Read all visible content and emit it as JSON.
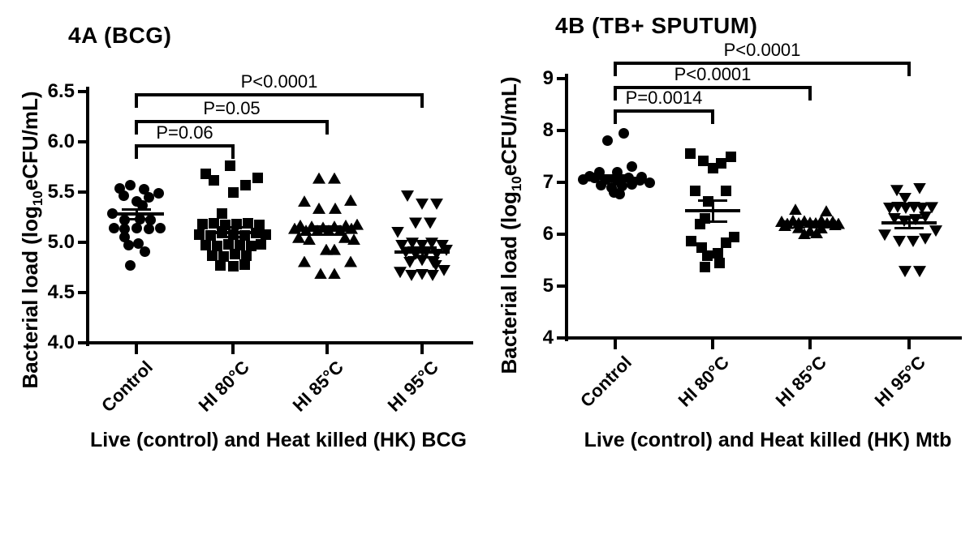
{
  "figure": {
    "background": "#ffffff",
    "ink": "#000000"
  },
  "chart_data": [
    {
      "id": "4A",
      "type": "scatter",
      "title": "4A (BCG)",
      "xlabel": "Live (control) and Heat killed (HK) BCG",
      "ylabel": {
        "prefix": "Bacterial load (log",
        "sub": "10",
        "suffix": "eCFU/mL)"
      },
      "ylim": [
        4.0,
        6.5
      ],
      "ytick_step": 0.5,
      "yticks": [
        "6.5",
        "6.0",
        "5.5",
        "5.0",
        "4.5",
        "4.0"
      ],
      "grid": false,
      "categories": [
        "Control",
        "HI 80°C",
        "HI 85°C",
        "HI 95°C"
      ],
      "groups": [
        {
          "category": "Control",
          "marker": "circle",
          "mean": 5.28,
          "sem": 0.05,
          "points": [
            [
              -21,
              5.54
            ],
            [
              -8,
              5.57
            ],
            [
              -16,
              5.46
            ],
            [
              9,
              5.53
            ],
            [
              15,
              5.45
            ],
            [
              27,
              5.49
            ],
            [
              0,
              5.41
            ],
            [
              7,
              5.37
            ],
            [
              -30,
              5.29
            ],
            [
              -15,
              5.22
            ],
            [
              4,
              5.23
            ],
            [
              17,
              5.22
            ],
            [
              -28,
              5.14
            ],
            [
              -15,
              5.13
            ],
            [
              0,
              5.14
            ],
            [
              15,
              5.13
            ],
            [
              29,
              5.14
            ],
            [
              -15,
              5.05
            ],
            [
              -10,
              4.97
            ],
            [
              2,
              4.99
            ],
            [
              10,
              4.91
            ],
            [
              -8,
              4.77
            ]
          ]
        },
        {
          "category": "HI 80°C",
          "marker": "square",
          "mean": 5.1,
          "sem": 0.05,
          "points": [
            [
              -34,
              5.68
            ],
            [
              -4,
              5.76
            ],
            [
              -24,
              5.62
            ],
            [
              15,
              5.57
            ],
            [
              30,
              5.64
            ],
            [
              0,
              5.5
            ],
            [
              -14,
              5.29
            ],
            [
              -38,
              5.18
            ],
            [
              -24,
              5.19
            ],
            [
              -10,
              5.17
            ],
            [
              4,
              5.18
            ],
            [
              18,
              5.19
            ],
            [
              32,
              5.17
            ],
            [
              -42,
              5.08
            ],
            [
              -28,
              5.07
            ],
            [
              -14,
              5.09
            ],
            [
              0,
              5.08
            ],
            [
              14,
              5.07
            ],
            [
              28,
              5.09
            ],
            [
              40,
              5.08
            ],
            [
              -34,
              4.97
            ],
            [
              -20,
              4.96
            ],
            [
              -6,
              4.98
            ],
            [
              8,
              4.97
            ],
            [
              22,
              4.96
            ],
            [
              34,
              4.98
            ],
            [
              -26,
              4.87
            ],
            [
              -12,
              4.86
            ],
            [
              2,
              4.88
            ],
            [
              16,
              4.87
            ],
            [
              -16,
              4.77
            ],
            [
              0,
              4.76
            ],
            [
              14,
              4.78
            ]
          ]
        },
        {
          "category": "HI 85°C",
          "marker": "triangle-up",
          "mean": 5.12,
          "sem": 0.04,
          "points": [
            [
              -10,
              5.64
            ],
            [
              9,
              5.64
            ],
            [
              -28,
              5.41
            ],
            [
              -10,
              5.34
            ],
            [
              10,
              5.34
            ],
            [
              29,
              5.42
            ],
            [
              -40,
              5.14
            ],
            [
              -33,
              5.17
            ],
            [
              -26,
              5.12
            ],
            [
              -19,
              5.16
            ],
            [
              -12,
              5.12
            ],
            [
              -5,
              5.15
            ],
            [
              2,
              5.12
            ],
            [
              9,
              5.16
            ],
            [
              16,
              5.12
            ],
            [
              23,
              5.17
            ],
            [
              30,
              5.14
            ],
            [
              37,
              5.18
            ],
            [
              -35,
              5.05
            ],
            [
              -22,
              5.03
            ],
            [
              22,
              5.05
            ],
            [
              33,
              5.03
            ],
            [
              -1,
              4.93
            ],
            [
              9,
              4.93
            ],
            [
              -28,
              4.81
            ],
            [
              29,
              4.81
            ],
            [
              -8,
              4.69
            ],
            [
              9,
              4.69
            ]
          ]
        },
        {
          "category": "HI 95°C",
          "marker": "triangle-down",
          "mean": 4.9,
          "sem": 0.05,
          "points": [
            [
              -18,
              5.46
            ],
            [
              0,
              5.38
            ],
            [
              18,
              5.38
            ],
            [
              -8,
              5.19
            ],
            [
              10,
              5.19
            ],
            [
              -30,
              5.1
            ],
            [
              -25,
              4.97
            ],
            [
              -12,
              4.99
            ],
            [
              0,
              4.97
            ],
            [
              12,
              4.99
            ],
            [
              25,
              4.97
            ],
            [
              -20,
              4.9
            ],
            [
              -8,
              4.88
            ],
            [
              5,
              4.9
            ],
            [
              18,
              4.88
            ],
            [
              30,
              4.92
            ],
            [
              -15,
              4.8
            ],
            [
              0,
              4.82
            ],
            [
              14,
              4.8
            ],
            [
              17,
              4.77
            ],
            [
              -27,
              4.7
            ],
            [
              -13,
              4.67
            ],
            [
              0,
              4.68
            ],
            [
              13,
              4.67
            ],
            [
              27,
              4.72
            ]
          ]
        }
      ],
      "comparisons": [
        {
          "label": "P=0.06",
          "from": 0,
          "to": 1,
          "v": 5.96
        },
        {
          "label": "P=0.05",
          "from": 0,
          "to": 2,
          "v": 6.2
        },
        {
          "label": "P<0.0001",
          "from": 0,
          "to": 3,
          "v": 6.47
        }
      ]
    },
    {
      "id": "4B",
      "type": "scatter",
      "title": "4B (TB+ SPUTUM)",
      "xlabel": "Live (control) and Heat killed (HK) Mtb",
      "ylabel": {
        "prefix": "Bacterial load (log",
        "sub": "10",
        "suffix": "eCFU/mL)"
      },
      "ylim": [
        4,
        9
      ],
      "ytick_step": 1,
      "yticks": [
        "9",
        "8",
        "7",
        "6",
        "5",
        "4"
      ],
      "grid": false,
      "categories": [
        "Control",
        "HI 80°C",
        "HI 85°C",
        "HI 95°C"
      ],
      "groups": [
        {
          "category": "Control",
          "marker": "circle",
          "mean": 7.08,
          "sem": 0.05,
          "points": [
            [
              -10,
              7.81
            ],
            [
              10,
              7.94
            ],
            [
              -20,
              7.2
            ],
            [
              2,
              7.2
            ],
            [
              20,
              7.31
            ],
            [
              -32,
              7.12
            ],
            [
              32,
              7.1
            ],
            [
              -40,
              7.05
            ],
            [
              -26,
              7.08
            ],
            [
              -12,
              7.06
            ],
            [
              2,
              7.04
            ],
            [
              16,
              7.08
            ],
            [
              30,
              7.04
            ],
            [
              42,
              7.0
            ],
            [
              -18,
              6.95
            ],
            [
              -5,
              6.9
            ],
            [
              8,
              6.93
            ],
            [
              20,
              6.96
            ],
            [
              -2,
              6.8
            ],
            [
              5,
              6.77
            ]
          ]
        },
        {
          "category": "HI 80°C",
          "marker": "square",
          "mean": 6.45,
          "sem": 0.2,
          "points": [
            [
              -28,
              7.55
            ],
            [
              -12,
              7.42
            ],
            [
              0,
              7.27
            ],
            [
              10,
              7.36
            ],
            [
              22,
              7.5
            ],
            [
              -22,
              6.84
            ],
            [
              -6,
              6.64
            ],
            [
              16,
              6.84
            ],
            [
              -10,
              6.3
            ],
            [
              -16,
              6.19
            ],
            [
              -27,
              5.86
            ],
            [
              -14,
              5.75
            ],
            [
              -7,
              5.59
            ],
            [
              6,
              5.64
            ],
            [
              16,
              5.83
            ],
            [
              26,
              5.94
            ],
            [
              -10,
              5.36
            ],
            [
              8,
              5.44
            ]
          ]
        },
        {
          "category": "HI 85°C",
          "marker": "triangle-up",
          "mean": 6.21,
          "sem": 0.03,
          "points": [
            [
              -18,
              6.48
            ],
            [
              20,
              6.45
            ],
            [
              -35,
              6.25
            ],
            [
              -28,
              6.21
            ],
            [
              -21,
              6.27
            ],
            [
              -14,
              6.22
            ],
            [
              -7,
              6.26
            ],
            [
              0,
              6.23
            ],
            [
              7,
              6.22
            ],
            [
              14,
              6.27
            ],
            [
              21,
              6.22
            ],
            [
              28,
              6.25
            ],
            [
              35,
              6.21
            ],
            [
              -31,
              6.17
            ],
            [
              31,
              6.18
            ],
            [
              -14,
              6.13
            ],
            [
              14,
              6.12
            ],
            [
              0,
              6.07
            ],
            [
              -7,
              6.01
            ],
            [
              8,
              6.03
            ]
          ]
        },
        {
          "category": "HI 95°C",
          "marker": "triangle-down",
          "mean": 6.22,
          "sem": 0.1,
          "points": [
            [
              -15,
              6.84
            ],
            [
              13,
              6.88
            ],
            [
              -5,
              6.69
            ],
            [
              -24,
              6.5
            ],
            [
              -14,
              6.52
            ],
            [
              -4,
              6.5
            ],
            [
              6,
              6.52
            ],
            [
              16,
              6.5
            ],
            [
              28,
              6.51
            ],
            [
              -18,
              6.3
            ],
            [
              -6,
              6.25
            ],
            [
              8,
              6.28
            ],
            [
              20,
              6.33
            ],
            [
              -30,
              5.98
            ],
            [
              33,
              6.06
            ],
            [
              -12,
              5.86
            ],
            [
              5,
              5.86
            ],
            [
              20,
              5.91
            ],
            [
              -5,
              5.28
            ],
            [
              13,
              5.28
            ]
          ]
        }
      ],
      "comparisons": [
        {
          "label": "P=0.0014",
          "from": 0,
          "to": 1,
          "v": 8.38
        },
        {
          "label": "P<0.0001",
          "from": 0,
          "to": 2,
          "v": 8.83
        },
        {
          "label": "P<0.0001",
          "from": 0,
          "to": 3,
          "v": 9.3
        }
      ]
    }
  ]
}
